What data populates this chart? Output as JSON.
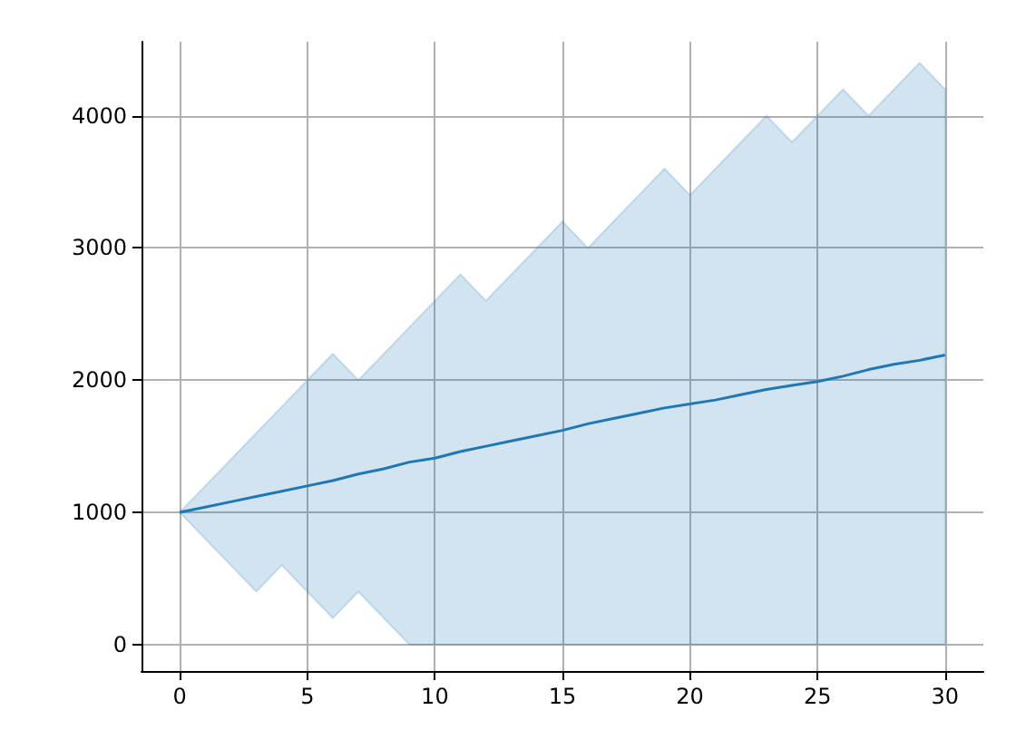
{
  "chart_data": {
    "type": "line",
    "x": [
      0,
      1,
      2,
      3,
      4,
      5,
      6,
      7,
      8,
      9,
      10,
      11,
      12,
      13,
      14,
      15,
      16,
      17,
      18,
      19,
      20,
      21,
      22,
      23,
      24,
      25,
      26,
      27,
      28,
      29,
      30
    ],
    "series": [
      {
        "color": "#1f77b4",
        "values": [
          1000,
          1040,
          1080,
          1120,
          1160,
          1200,
          1240,
          1290,
          1330,
          1380,
          1410,
          1460,
          1500,
          1540,
          1580,
          1620,
          1670,
          1710,
          1750,
          1790,
          1820,
          1850,
          1890,
          1930,
          1960,
          1990,
          2030,
          2080,
          2120,
          2150,
          2190
        ],
        "lower": [
          1000,
          800,
          600,
          400,
          600,
          400,
          200,
          400,
          200,
          0,
          0,
          0,
          0,
          0,
          0,
          0,
          0,
          0,
          0,
          0,
          0,
          0,
          0,
          0,
          0,
          0,
          0,
          0,
          0,
          0,
          0
        ],
        "upper": [
          1000,
          1200,
          1400,
          1600,
          1800,
          2000,
          2200,
          2000,
          2200,
          2400,
          2600,
          2800,
          2600,
          2800,
          3000,
          3200,
          3000,
          3200,
          3400,
          3600,
          3400,
          3600,
          3800,
          4000,
          3800,
          4000,
          4200,
          4000,
          4200,
          4400,
          4200
        ]
      }
    ],
    "xlim": [
      -1.5,
      31.5
    ],
    "xticks": [
      0,
      5,
      10,
      15,
      20,
      25,
      30
    ],
    "ylim": [
      -200,
      4560
    ],
    "yticks": [
      0,
      1000,
      2000,
      3000,
      4000
    ],
    "grid": true,
    "marker": "none",
    "line_style": "solid"
  }
}
